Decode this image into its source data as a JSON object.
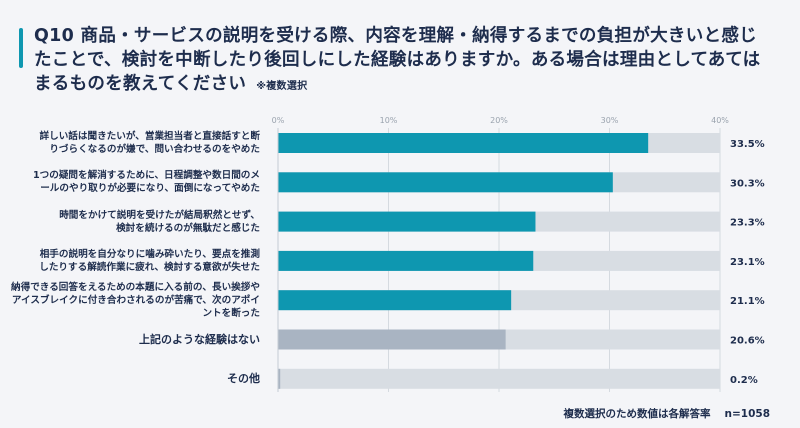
{
  "chart_data": {
    "type": "bar",
    "orientation": "horizontal",
    "title": "Q10 商品・サービスの説明を受ける際、内容を理解・納得するまでの負担が大きいと感じたことで、検討を中断したり後回しにした経験はありますか。ある場合は理由としてあてはまるものを教えてください",
    "title_note": "※複数選択",
    "xlim": [
      0,
      40
    ],
    "ticks": [
      "0%",
      "10%",
      "20%",
      "30%",
      "40%"
    ],
    "tick_values": [
      0,
      10,
      20,
      30,
      40
    ],
    "categories": [
      [
        "詳しい話は聞きたいが、営業担当者と直接話すと断",
        "りづらくなるのが嫌で、問い合わせるのをやめた"
      ],
      [
        "1つの疑問を解消するために、日程調整や数日間のメ",
        "ールのやり取りが必要になり、面倒になってやめた"
      ],
      [
        "時間をかけて説明を受けたが結局釈然とせず、",
        "検討を続けるのが無駄だと感じた"
      ],
      [
        "相手の説明を自分なりに噛み砕いたり、要点を推測",
        "したりする解読作業に疲れ、検討する意欲が失せた"
      ],
      [
        "納得できる回答をえるための本題に入る前の、長い挨拶や",
        "アイスブレイクに付き合わされるのが苦痛で、次のアポイ",
        "ントを断った"
      ],
      [
        "上記のような経験はない"
      ],
      [
        "その他"
      ]
    ],
    "values": [
      33.5,
      30.3,
      23.3,
      23.1,
      21.1,
      20.6,
      0.2
    ],
    "value_labels": [
      "33.5%",
      "30.3%",
      "23.3%",
      "23.1%",
      "21.1%",
      "20.6%",
      "0.2%"
    ],
    "bar_colors": [
      "#0e97b0",
      "#0e97b0",
      "#0e97b0",
      "#0e97b0",
      "#0e97b0",
      "#a9b4c2",
      "#a9b4c2"
    ],
    "track_color": "#d8dde3",
    "footnote": "複数選択のため数値は各解答率",
    "n": "n=1058"
  }
}
